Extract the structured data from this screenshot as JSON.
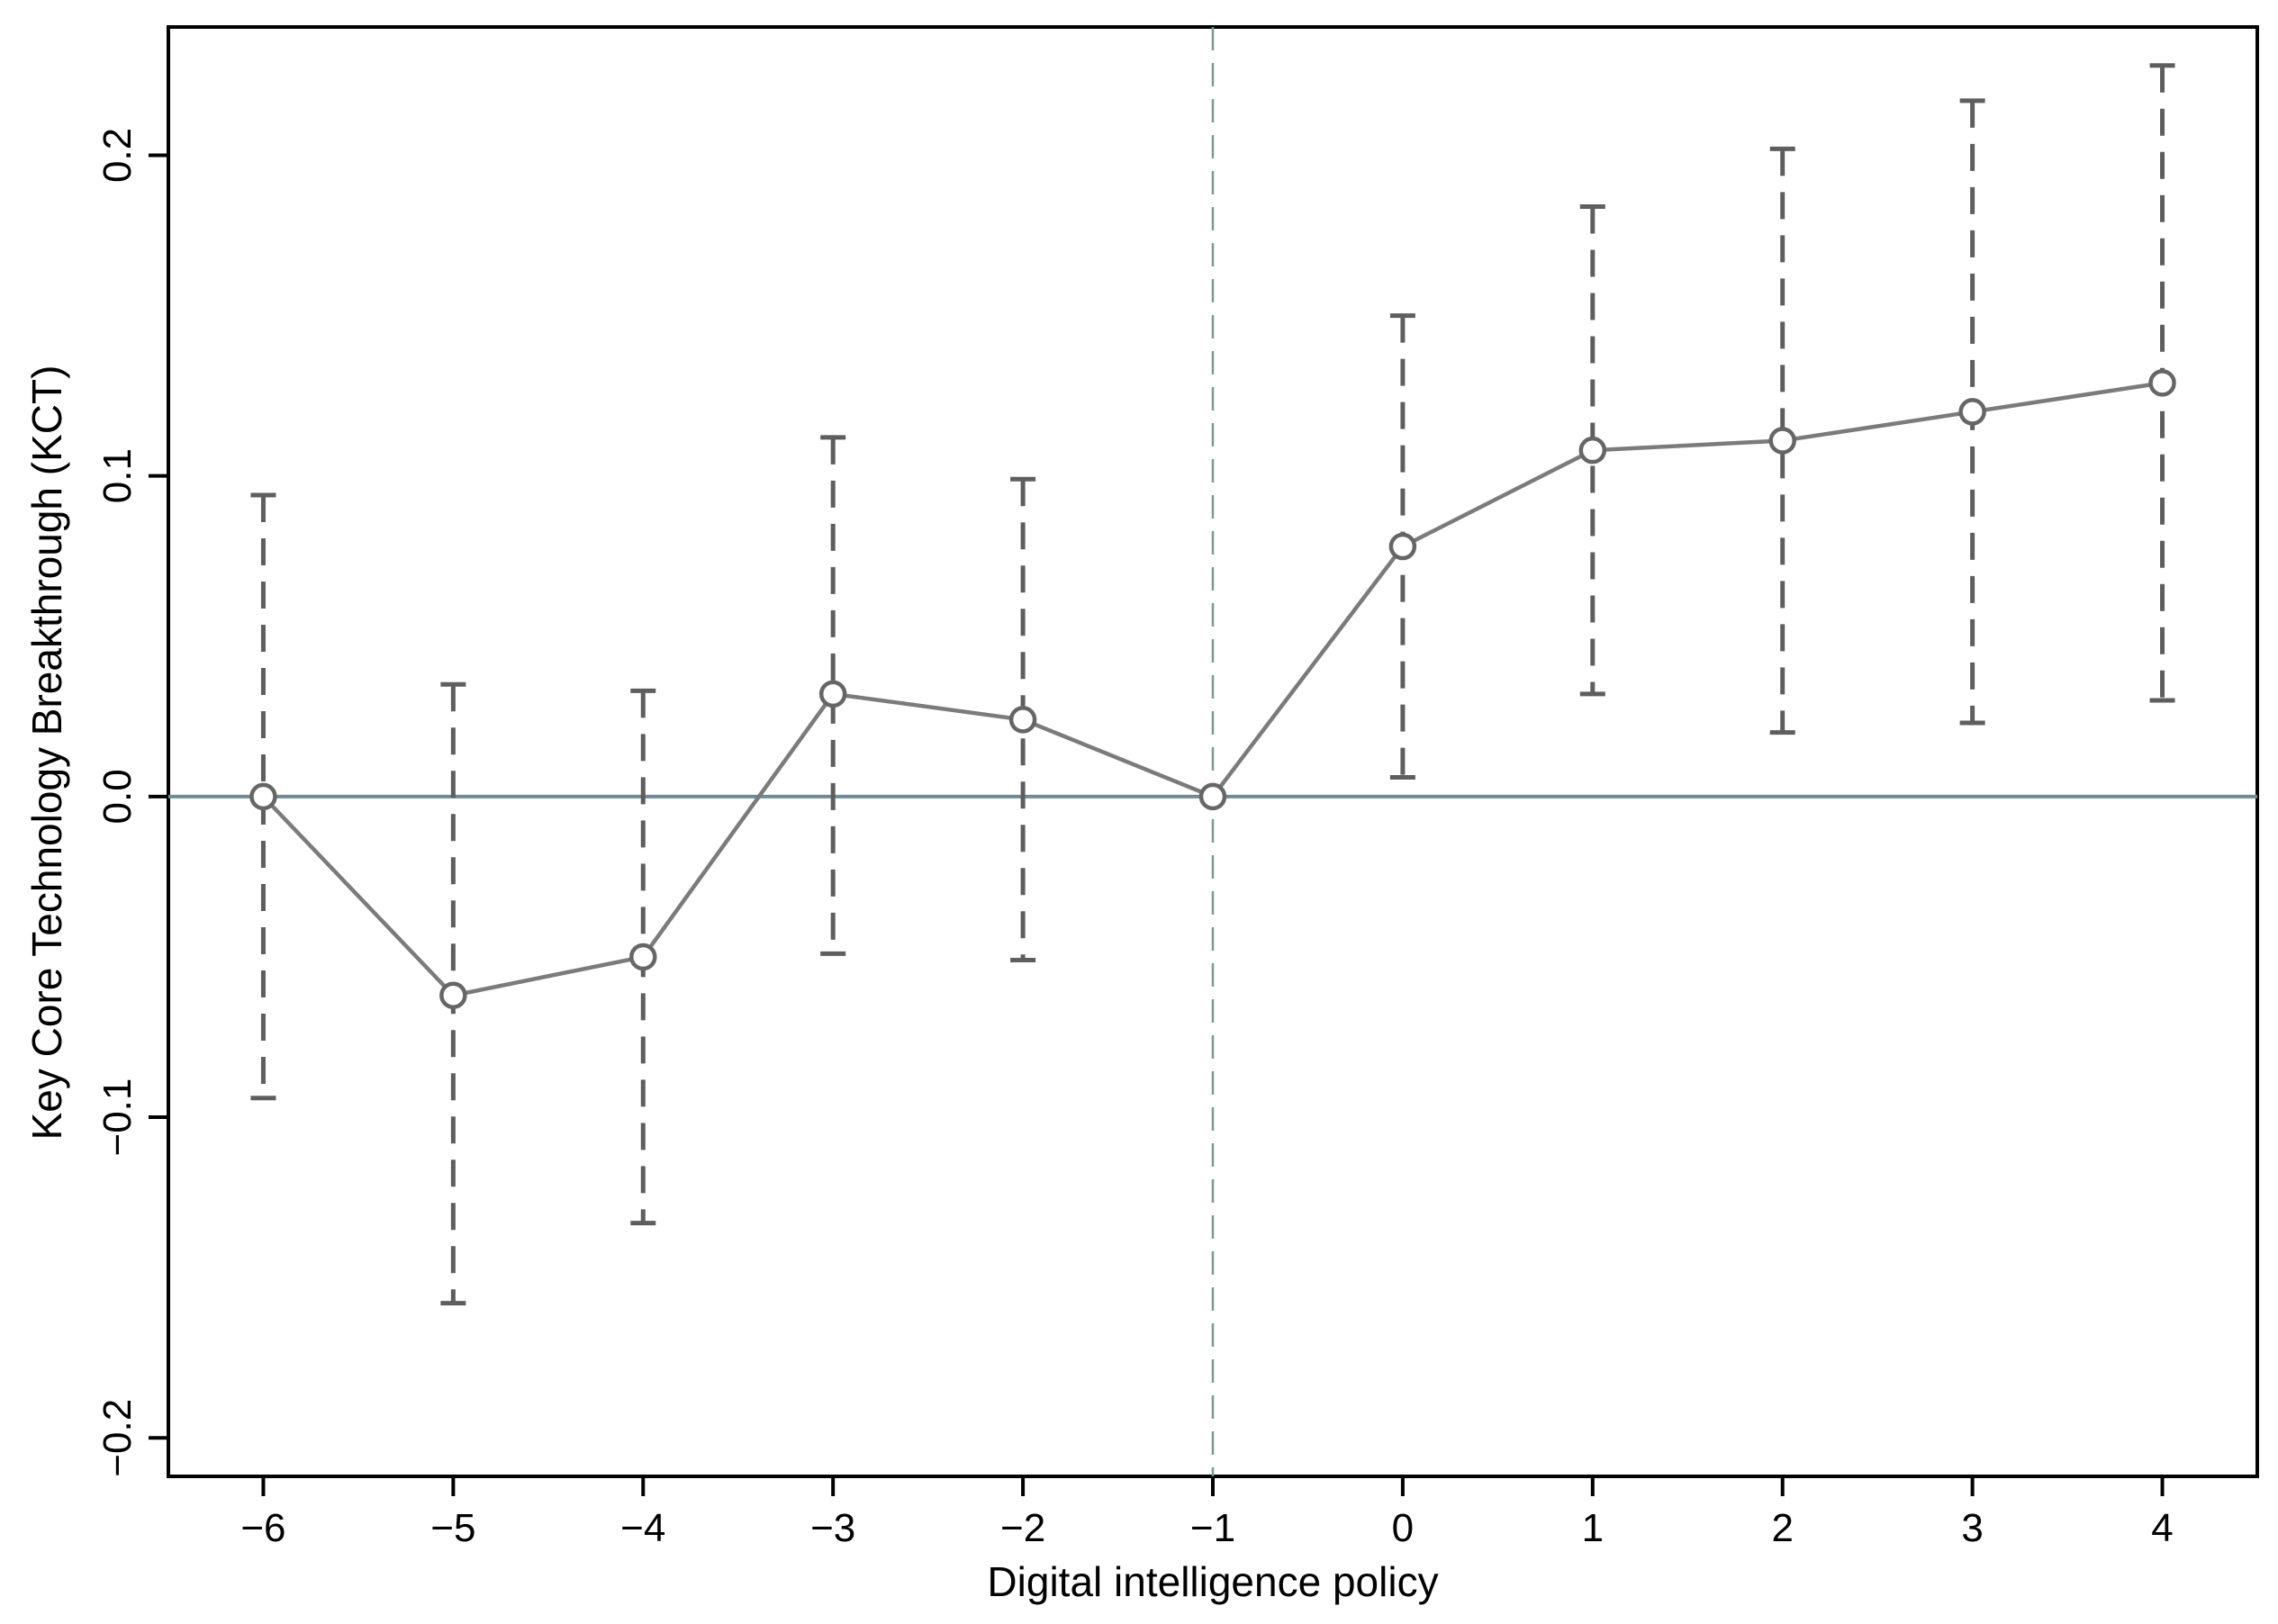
{
  "chart_data": {
    "type": "line",
    "title": "",
    "xlabel": "Digital intelligence policy",
    "ylabel": "Key Core Technology Breakthrough (KCT)",
    "x": [
      -6,
      -5,
      -4,
      -3,
      -2,
      -1,
      0,
      1,
      2,
      3,
      4
    ],
    "x_tick_labels": [
      "−6",
      "−5",
      "−4",
      "−3",
      "−2",
      "−1",
      "0",
      "1",
      "2",
      "3",
      "4"
    ],
    "y_ticks": [
      -0.2,
      -0.1,
      0.0,
      0.1,
      0.2
    ],
    "y_tick_labels": [
      "−0.2",
      "−0.1",
      "0.0",
      "0.1",
      "0.2"
    ],
    "xlim": [
      -6.5,
      4.5
    ],
    "ylim": [
      -0.212,
      0.24
    ],
    "series": [
      {
        "values": [
          0.0,
          -0.062,
          -0.05,
          0.032,
          0.024,
          0.0,
          0.078,
          0.108,
          0.111,
          0.12,
          0.129
        ],
        "ci_lower": [
          -0.094,
          -0.158,
          -0.133,
          -0.049,
          -0.051,
          null,
          0.006,
          0.032,
          0.02,
          0.023,
          0.03
        ],
        "ci_upper": [
          0.094,
          0.035,
          0.033,
          0.112,
          0.099,
          null,
          0.15,
          0.184,
          0.202,
          0.217,
          0.228
        ]
      }
    ],
    "reference_lines": {
      "horizontal_y": 0.0,
      "vertical_x": -1
    },
    "grid": false,
    "legend": "none",
    "colors": {
      "line": "#7b7b7b",
      "marker": "#666666",
      "error_bar": "#5e5e5e",
      "zero_line": "#6f8c96",
      "event_line": "#7d9a8e",
      "axis": "#000000"
    }
  }
}
